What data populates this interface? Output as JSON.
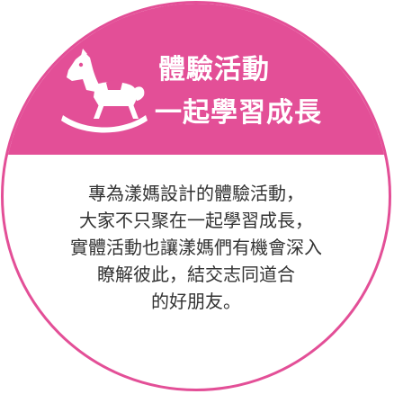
{
  "badge": {
    "title_line1": "體驗活動",
    "title_line2": "一起學習成長",
    "icon": "rocking-horse-icon",
    "colors": {
      "accent": "#e34f97",
      "text": "#333333",
      "background": "#ffffff"
    }
  },
  "description": {
    "lines": [
      "專為漾媽設計的體驗活動，",
      "大家不只聚在一起學習成長，",
      "實體活動也讓漾媽們有機會深入",
      "瞭解彼此，結交志同道合",
      "的好朋友。"
    ]
  }
}
